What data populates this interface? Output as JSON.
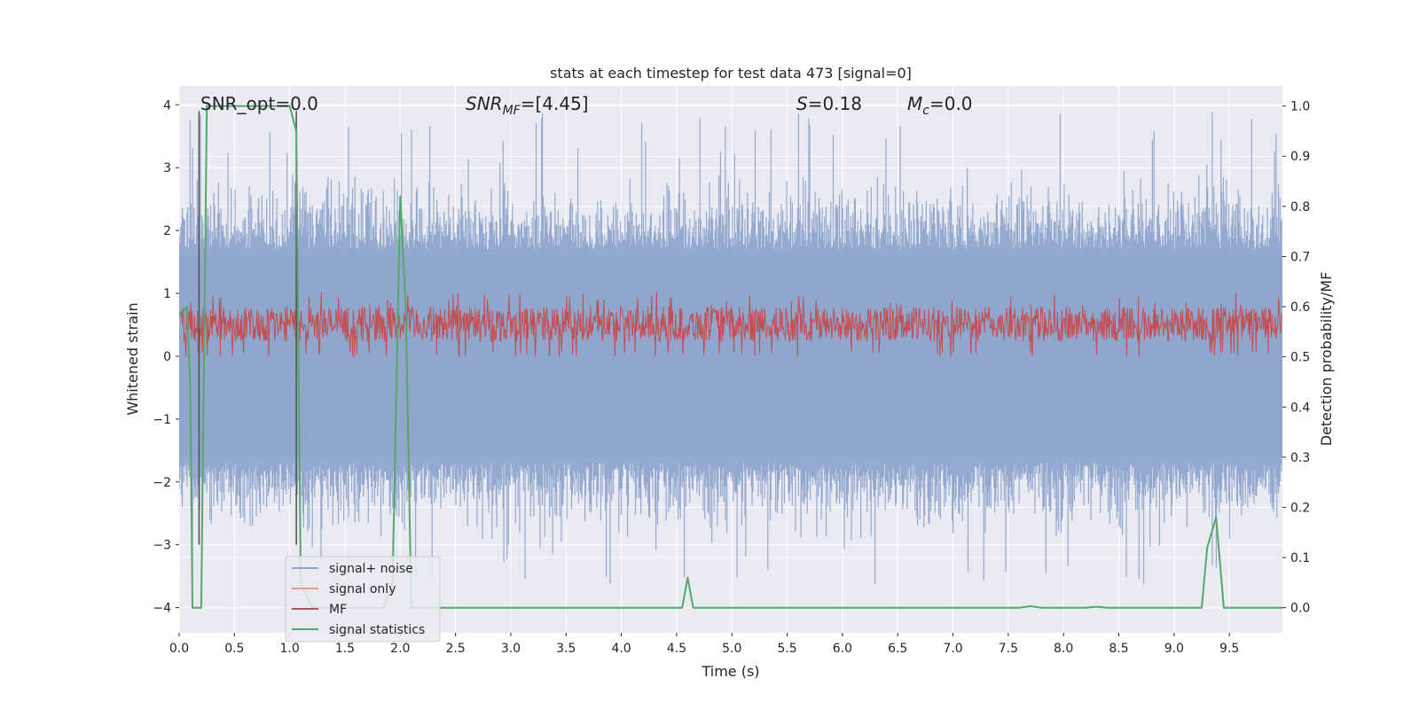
{
  "chart_data": {
    "type": "line",
    "title": "stats at each timestep for test data 473 [signal=0]",
    "xlabel": "Time (s)",
    "ylabel_left": "Whitened strain",
    "ylabel_right": "Detection probability/MF",
    "xlim": [
      0.0,
      9.98
    ],
    "ylim_left": [
      -4.4,
      4.3
    ],
    "ylim_right": [
      -0.05,
      1.04
    ],
    "x_ticks": [
      "0.0",
      "0.5",
      "1.0",
      "1.5",
      "2.0",
      "2.5",
      "3.0",
      "3.5",
      "4.0",
      "4.5",
      "5.0",
      "5.5",
      "6.0",
      "6.5",
      "7.0",
      "7.5",
      "8.0",
      "8.5",
      "9.0",
      "9.5"
    ],
    "y_ticks_left": [
      "4",
      "3",
      "2",
      "1",
      "0",
      "−1",
      "−2",
      "−3",
      "−4"
    ],
    "y_ticks_right": [
      "1.0",
      "0.9",
      "0.8",
      "0.7",
      "0.6",
      "0.5",
      "0.4",
      "0.3",
      "0.2",
      "0.1",
      "0.0"
    ],
    "grid": true,
    "annotations": {
      "snr_opt": "SNR_opt=0.0",
      "snr_mf": "=[4.45]",
      "snr_mf_symbol": "SNR",
      "snr_mf_sub": "MF",
      "s_symbol": "S",
      "s_value": "=0.18",
      "mc_symbol": "M",
      "mc_sub": "c",
      "mc_value": "=0.0"
    },
    "vlines": [
      0.18,
      1.06
    ],
    "series": [
      {
        "name": "signal+ noise",
        "color": "#8fa5cc",
        "description_axis": "left",
        "noise_band_left": [
          -1.7,
          1.7
        ],
        "peak_extent_left": [
          -3.7,
          3.9
        ]
      },
      {
        "name": "signal only",
        "color": "#e8a07e",
        "axis": "left",
        "x": [],
        "y": []
      },
      {
        "name": "MF",
        "color": "#c44e52",
        "axis": "right",
        "band_right": [
          0.5,
          0.6
        ],
        "peak_right": 0.63
      },
      {
        "name": "signal statistics",
        "color": "#55a868",
        "axis": "right",
        "x": [
          0.0,
          0.07,
          0.1,
          0.12,
          0.15,
          0.2,
          0.25,
          0.3,
          0.9,
          1.0,
          1.06,
          1.1,
          1.2,
          1.85,
          1.93,
          2.0,
          2.05,
          2.1,
          4.5,
          4.55,
          4.6,
          4.65,
          7.6,
          7.7,
          7.8,
          8.2,
          8.3,
          8.4,
          9.2,
          9.25,
          9.3,
          9.38,
          9.45,
          9.98
        ],
        "y": [
          0.58,
          0.6,
          0.45,
          0.0,
          0.0,
          0.0,
          1.0,
          1.0,
          1.0,
          1.0,
          0.95,
          0.05,
          0.0,
          0.0,
          0.05,
          0.82,
          0.6,
          0.0,
          0.0,
          0.0,
          0.06,
          0.0,
          0.0,
          0.003,
          0.0,
          0.0,
          0.002,
          0.0,
          0.0,
          0.0,
          0.12,
          0.18,
          0.0,
          0.0
        ]
      }
    ],
    "legend": {
      "placement": "lower-left",
      "entries": [
        "signal+ noise",
        "signal only",
        "MF",
        "signal statistics"
      ]
    }
  },
  "colors": {
    "axes_bg": "#eaeaf2",
    "grid": "#ffffff",
    "vline": "#555555"
  }
}
